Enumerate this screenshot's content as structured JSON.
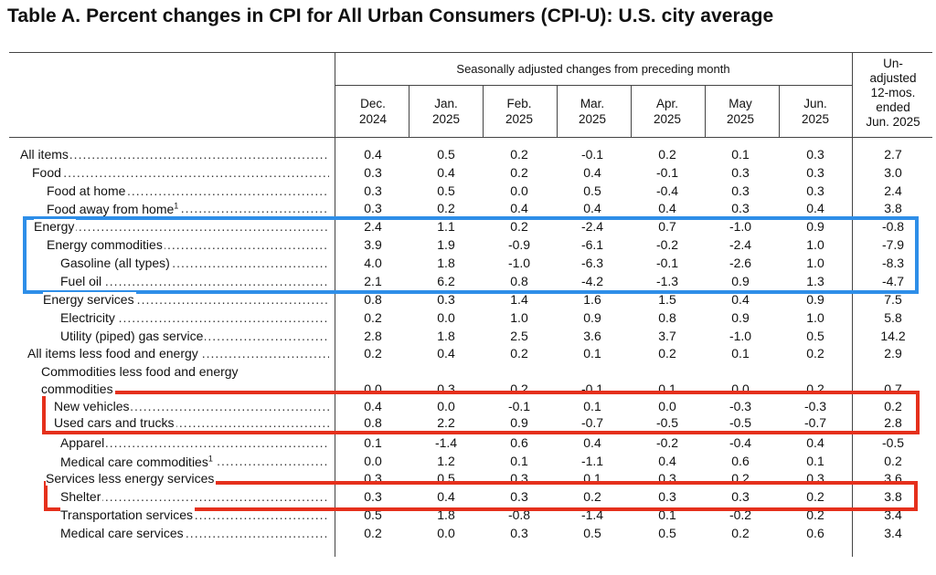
{
  "title": "Table A. Percent changes in CPI for All Urban Consumers (CPI-U): U.S. city average",
  "header": {
    "seasonal": "Seasonally adjusted changes from preceding month",
    "unadjusted": [
      "Un-",
      "adjusted",
      "12-mos.",
      "ended",
      "Jun. 2025"
    ],
    "columns": [
      {
        "l1": "Dec.",
        "l2": "2024"
      },
      {
        "l1": "Jan.",
        "l2": "2025"
      },
      {
        "l1": "Feb.",
        "l2": "2025"
      },
      {
        "l1": "Mar.",
        "l2": "2025"
      },
      {
        "l1": "Apr.",
        "l2": "2025"
      },
      {
        "l1": "May",
        "l2": "2025"
      },
      {
        "l1": "Jun.",
        "l2": "2025"
      }
    ]
  },
  "highlight_colors": {
    "blue": "#2e8ee8",
    "red": "#e5301c"
  },
  "rows": [
    {
      "label": "All items",
      "values": [
        "0.4",
        "0.5",
        "0.2",
        "-0.1",
        "0.2",
        "0.1",
        "0.3",
        "2.7"
      ]
    },
    {
      "label": "Food",
      "values": [
        "0.3",
        "0.4",
        "0.2",
        "0.4",
        "-0.1",
        "0.3",
        "0.3",
        "3.0"
      ]
    },
    {
      "label": "Food at home",
      "values": [
        "0.3",
        "0.5",
        "0.0",
        "0.5",
        "-0.4",
        "0.3",
        "0.3",
        "2.4"
      ]
    },
    {
      "label": "Food away from home",
      "sup": "1",
      "values": [
        "0.3",
        "0.2",
        "0.4",
        "0.4",
        "0.4",
        "0.3",
        "0.4",
        "3.8"
      ]
    },
    {
      "label": "Energy",
      "values": [
        "2.4",
        "1.1",
        "0.2",
        "-2.4",
        "0.7",
        "-1.0",
        "0.9",
        "-0.8"
      ]
    },
    {
      "label": "Energy commodities",
      "values": [
        "3.9",
        "1.9",
        "-0.9",
        "-6.1",
        "-0.2",
        "-2.4",
        "1.0",
        "-7.9"
      ]
    },
    {
      "label": "Gasoline (all types)",
      "values": [
        "4.0",
        "1.8",
        "-1.0",
        "-6.3",
        "-0.1",
        "-2.6",
        "1.0",
        "-8.3"
      ]
    },
    {
      "label": "Fuel oil",
      "values": [
        "2.1",
        "6.2",
        "0.8",
        "-4.2",
        "-1.3",
        "0.9",
        "1.3",
        "-4.7"
      ]
    },
    {
      "label": "Energy services",
      "values": [
        "0.8",
        "0.3",
        "1.4",
        "1.6",
        "1.5",
        "0.4",
        "0.9",
        "7.5"
      ]
    },
    {
      "label": "Electricity",
      "values": [
        "0.2",
        "0.0",
        "1.0",
        "0.9",
        "0.8",
        "0.9",
        "1.0",
        "5.8"
      ]
    },
    {
      "label": "Utility (piped) gas service",
      "values": [
        "2.8",
        "1.8",
        "2.5",
        "3.6",
        "3.7",
        "-1.0",
        "0.5",
        "14.2"
      ]
    },
    {
      "label": "All items less food and energy",
      "values": [
        "0.2",
        "0.4",
        "0.2",
        "0.1",
        "0.2",
        "0.1",
        "0.2",
        "2.9"
      ]
    },
    {
      "label_line1": "Commodities less food and energy",
      "label": "commodities",
      "values": [
        "0.0",
        "0.3",
        "0.2",
        "-0.1",
        "0.1",
        "0.0",
        "0.2",
        "0.7"
      ]
    },
    {
      "label": "New vehicles",
      "values": [
        "0.4",
        "0.0",
        "-0.1",
        "0.1",
        "0.0",
        "-0.3",
        "-0.3",
        "0.2"
      ]
    },
    {
      "label": "Used cars and trucks",
      "values": [
        "0.8",
        "2.2",
        "0.9",
        "-0.7",
        "-0.5",
        "-0.5",
        "-0.7",
        "2.8"
      ]
    },
    {
      "label": "Apparel",
      "values": [
        "0.1",
        "-1.4",
        "0.6",
        "0.4",
        "-0.2",
        "-0.4",
        "0.4",
        "-0.5"
      ]
    },
    {
      "label": "Medical care commodities",
      "sup": "1",
      "values": [
        "0.0",
        "1.2",
        "0.1",
        "-1.1",
        "0.4",
        "0.6",
        "0.1",
        "0.2"
      ]
    },
    {
      "label": "Services less energy services",
      "values": [
        "0.3",
        "0.5",
        "0.3",
        "0.1",
        "0.3",
        "0.2",
        "0.3",
        "3.6"
      ]
    },
    {
      "label": "Shelter",
      "values": [
        "0.3",
        "0.4",
        "0.3",
        "0.2",
        "0.3",
        "0.3",
        "0.2",
        "3.8"
      ]
    },
    {
      "label": "Transportation services",
      "values": [
        "0.5",
        "1.8",
        "-0.8",
        "-1.4",
        "0.1",
        "-0.2",
        "0.2",
        "3.4"
      ]
    },
    {
      "label": "Medical care services",
      "values": [
        "0.2",
        "0.0",
        "0.3",
        "0.5",
        "0.5",
        "0.2",
        "0.6",
        "3.4"
      ]
    }
  ]
}
